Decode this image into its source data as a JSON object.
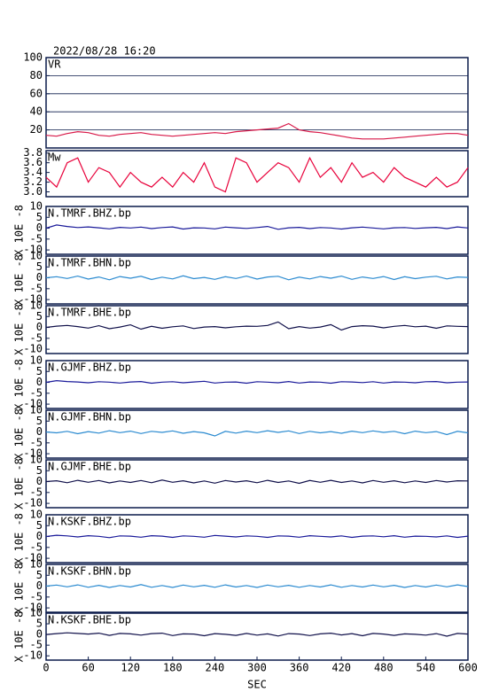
{
  "chart_data": [
    {
      "type": "line",
      "title": "2022/08/28 16:20",
      "label": "VR",
      "color": "#d81848",
      "grid": true,
      "ylim": [
        0,
        100
      ],
      "yticks": [
        20,
        40,
        60,
        80,
        100
      ],
      "xlim": [
        0,
        600
      ],
      "x": [
        0,
        15,
        30,
        45,
        60,
        75,
        90,
        105,
        120,
        135,
        150,
        165,
        180,
        195,
        210,
        225,
        240,
        255,
        270,
        285,
        300,
        315,
        330,
        345,
        360,
        375,
        390,
        405,
        420,
        435,
        450,
        465,
        480,
        495,
        510,
        525,
        540,
        555,
        570,
        585,
        600
      ],
      "values": [
        14,
        13,
        16,
        18,
        17,
        14,
        13,
        15,
        16,
        17,
        15,
        14,
        13,
        14,
        15,
        16,
        17,
        16,
        18,
        19,
        20,
        21,
        22,
        27,
        20,
        18,
        17,
        15,
        13,
        11,
        10,
        10,
        10,
        11,
        12,
        13,
        14,
        15,
        16,
        16,
        14
      ]
    },
    {
      "type": "line",
      "label": "Mw",
      "color": "#e8003a",
      "ylim": [
        2.9,
        3.85
      ],
      "yticks": [
        {
          "value": 3,
          "label": "3.0"
        },
        3.2,
        3.4,
        3.6,
        3.8
      ],
      "xlim": [
        0,
        600
      ],
      "x": [
        0,
        15,
        30,
        45,
        60,
        75,
        90,
        105,
        120,
        135,
        150,
        165,
        180,
        195,
        210,
        225,
        240,
        255,
        270,
        285,
        300,
        315,
        330,
        345,
        360,
        375,
        390,
        405,
        420,
        435,
        450,
        465,
        480,
        495,
        510,
        525,
        540,
        555,
        570,
        585,
        600
      ],
      "values": [
        3.3,
        3.1,
        3.6,
        3.7,
        3.2,
        3.5,
        3.4,
        3.1,
        3.4,
        3.2,
        3.1,
        3.3,
        3.1,
        3.4,
        3.2,
        3.6,
        3.1,
        3.0,
        3.7,
        3.6,
        3.2,
        3.4,
        3.6,
        3.5,
        3.2,
        3.7,
        3.3,
        3.5,
        3.2,
        3.6,
        3.3,
        3.4,
        3.2,
        3.5,
        3.3,
        3.2,
        3.1,
        3.3,
        3.1,
        3.2,
        3.5
      ]
    },
    {
      "type": "line",
      "label": "N.TMRF.BHZ.bp",
      "ylabel": "X 10E -8",
      "color": "#1a1a9a",
      "ylim": [
        -12,
        10
      ],
      "yticks": [
        -10,
        -5,
        0,
        5,
        10
      ],
      "xlim": [
        0,
        600
      ],
      "x": [
        0,
        15,
        30,
        45,
        60,
        75,
        90,
        105,
        120,
        135,
        150,
        165,
        180,
        195,
        210,
        225,
        240,
        255,
        270,
        285,
        300,
        315,
        330,
        345,
        360,
        375,
        390,
        405,
        420,
        435,
        450,
        465,
        480,
        495,
        510,
        525,
        540,
        555,
        570,
        585,
        600
      ],
      "values": [
        0,
        1.5,
        0.8,
        0.3,
        0.6,
        0.2,
        -0.3,
        0.4,
        0.1,
        0.5,
        -0.2,
        0.3,
        0.6,
        -0.4,
        0.2,
        0.1,
        -0.3,
        0.5,
        0.2,
        -0.1,
        0.3,
        0.8,
        -0.5,
        0.2,
        0.4,
        -0.2,
        0.3,
        0.1,
        -0.4,
        0.2,
        0.5,
        0.1,
        -0.3,
        0.2,
        0.3,
        -0.1,
        0.2,
        0.4,
        -0.2,
        0.6,
        0.1
      ]
    },
    {
      "type": "line",
      "label": "N.TMRF.BHN.bp",
      "ylabel": "X 10E -8",
      "color": "#2a8ad0",
      "ylim": [
        -12,
        10
      ],
      "yticks": [
        -10,
        -5,
        0,
        5,
        10
      ],
      "xlim": [
        0,
        600
      ],
      "x": [
        0,
        15,
        30,
        45,
        60,
        75,
        90,
        105,
        120,
        135,
        150,
        165,
        180,
        195,
        210,
        225,
        240,
        255,
        270,
        285,
        300,
        315,
        330,
        345,
        360,
        375,
        390,
        405,
        420,
        435,
        450,
        465,
        480,
        495,
        510,
        525,
        540,
        555,
        570,
        585,
        600
      ],
      "values": [
        0,
        0.5,
        -0.3,
        0.8,
        -0.6,
        0.4,
        -0.9,
        0.6,
        -0.2,
        0.7,
        -0.8,
        0.3,
        -0.5,
        0.9,
        -0.4,
        0.2,
        -0.7,
        0.5,
        -0.3,
        0.8,
        -0.6,
        0.4,
        0.7,
        -0.9,
        0.3,
        -0.5,
        0.6,
        -0.2,
        0.8,
        -0.7,
        0.4,
        -0.3,
        0.6,
        -0.8,
        0.5,
        -0.4,
        0.3,
        0.7,
        -0.5,
        0.4,
        0.2
      ]
    },
    {
      "type": "line",
      "label": "N.TMRF.BHE.bp",
      "ylabel": "X 10E -8",
      "color": "#10104a",
      "ylim": [
        -12,
        10
      ],
      "yticks": [
        -10,
        -5,
        0,
        5,
        10
      ],
      "xlim": [
        0,
        600
      ],
      "x": [
        0,
        15,
        30,
        45,
        60,
        75,
        90,
        105,
        120,
        135,
        150,
        165,
        180,
        195,
        210,
        225,
        240,
        255,
        270,
        285,
        300,
        315,
        330,
        345,
        360,
        375,
        390,
        405,
        420,
        435,
        450,
        465,
        480,
        495,
        510,
        525,
        540,
        555,
        570,
        585,
        600
      ],
      "values": [
        0,
        0.6,
        0.9,
        0.4,
        -0.3,
        0.8,
        -0.6,
        0.2,
        1.2,
        -0.8,
        0.5,
        -0.4,
        0.3,
        0.7,
        -0.5,
        0.2,
        0.4,
        -0.2,
        0.3,
        0.6,
        0.5,
        0.9,
        2.5,
        -0.6,
        0.4,
        -0.3,
        0.2,
        1.3,
        -1.2,
        0.4,
        0.8,
        0.6,
        -0.2,
        0.5,
        0.9,
        0.3,
        0.6,
        -0.4,
        0.7,
        0.5,
        0.4
      ]
    },
    {
      "type": "line",
      "label": "N.GJMF.BHZ.bp",
      "ylabel": "X 10E -8",
      "color": "#1a1a9a",
      "ylim": [
        -12,
        10
      ],
      "yticks": [
        -10,
        -5,
        0,
        5,
        10
      ],
      "xlim": [
        0,
        600
      ],
      "x": [
        0,
        15,
        30,
        45,
        60,
        75,
        90,
        105,
        120,
        135,
        150,
        165,
        180,
        195,
        210,
        225,
        240,
        255,
        270,
        285,
        300,
        315,
        330,
        345,
        360,
        375,
        390,
        405,
        420,
        435,
        450,
        465,
        480,
        495,
        510,
        525,
        540,
        555,
        570,
        585,
        600
      ],
      "values": [
        0,
        0.8,
        0.4,
        0.2,
        -0.2,
        0.3,
        0.1,
        -0.3,
        0.2,
        0.4,
        -0.4,
        0.1,
        0.3,
        -0.2,
        0.2,
        0.5,
        -0.3,
        0.1,
        0.2,
        -0.4,
        0.3,
        0.1,
        -0.2,
        0.4,
        -0.3,
        0.2,
        0.1,
        -0.4,
        0.3,
        0.2,
        -0.1,
        0.3,
        -0.3,
        0.2,
        0.1,
        -0.2,
        0.3,
        0.4,
        -0.2,
        0.1,
        0.2
      ]
    },
    {
      "type": "line",
      "label": "N.GJMF.BHN.bp",
      "ylabel": "X 10E -8",
      "color": "#2a8ad0",
      "ylim": [
        -12,
        10
      ],
      "yticks": [
        -10,
        -5,
        0,
        5,
        10
      ],
      "xlim": [
        0,
        600
      ],
      "x": [
        0,
        15,
        30,
        45,
        60,
        75,
        90,
        105,
        120,
        135,
        150,
        165,
        180,
        195,
        210,
        225,
        240,
        255,
        270,
        285,
        300,
        315,
        330,
        345,
        360,
        375,
        390,
        405,
        420,
        435,
        450,
        465,
        480,
        495,
        510,
        525,
        540,
        555,
        570,
        585,
        600
      ],
      "values": [
        0,
        -0.4,
        0.3,
        -0.8,
        0.2,
        -0.5,
        0.6,
        -0.3,
        0.4,
        -0.7,
        0.3,
        -0.2,
        0.5,
        -0.6,
        0.2,
        -0.4,
        -1.8,
        0.3,
        -0.5,
        0.4,
        -0.3,
        0.6,
        -0.2,
        0.5,
        -0.7,
        0.3,
        -0.4,
        0.2,
        -0.6,
        0.4,
        -0.3,
        0.5,
        -0.2,
        0.3,
        -0.8,
        0.4,
        -0.3,
        0.2,
        -1.2,
        0.3,
        -0.4
      ]
    },
    {
      "type": "line",
      "label": "N.GJMF.BHE.bp",
      "ylabel": "X 10E -8",
      "color": "#10104a",
      "ylim": [
        -12,
        10
      ],
      "yticks": [
        -10,
        -5,
        0,
        5,
        10
      ],
      "xlim": [
        0,
        600
      ],
      "x": [
        0,
        15,
        30,
        45,
        60,
        75,
        90,
        105,
        120,
        135,
        150,
        165,
        180,
        195,
        210,
        225,
        240,
        255,
        270,
        285,
        300,
        315,
        330,
        345,
        360,
        375,
        390,
        405,
        420,
        435,
        450,
        465,
        480,
        495,
        510,
        525,
        540,
        555,
        570,
        585,
        600
      ],
      "values": [
        0,
        0.4,
        -0.5,
        0.6,
        -0.3,
        0.5,
        -0.6,
        0.3,
        -0.4,
        0.5,
        -0.5,
        0.7,
        -0.3,
        0.4,
        -0.6,
        0.3,
        -0.7,
        0.5,
        -0.2,
        0.4,
        -0.5,
        0.6,
        -0.4,
        0.3,
        -0.8,
        0.5,
        -0.3,
        0.6,
        -0.4,
        0.3,
        -0.6,
        0.5,
        -0.3,
        0.4,
        -0.5,
        0.3,
        -0.4,
        0.5,
        -0.2,
        0.4,
        0.3
      ]
    },
    {
      "type": "line",
      "label": "N.KSKF.BHZ.bp",
      "ylabel": "X 10E -8",
      "color": "#1a1a9a",
      "ylim": [
        -12,
        10
      ],
      "yticks": [
        -10,
        -5,
        0,
        5,
        10
      ],
      "xlim": [
        0,
        600
      ],
      "x": [
        0,
        15,
        30,
        45,
        60,
        75,
        90,
        105,
        120,
        135,
        150,
        165,
        180,
        195,
        210,
        225,
        240,
        255,
        270,
        285,
        300,
        315,
        330,
        345,
        360,
        375,
        390,
        405,
        420,
        435,
        450,
        465,
        480,
        495,
        510,
        525,
        540,
        555,
        570,
        585,
        600
      ],
      "values": [
        0,
        0.6,
        0.3,
        -0.2,
        0.4,
        0.1,
        -0.5,
        0.3,
        0.2,
        -0.3,
        0.4,
        0.2,
        -0.4,
        0.3,
        0.1,
        -0.3,
        0.5,
        0.2,
        -0.2,
        0.3,
        0.1,
        -0.4,
        0.3,
        0.2,
        -0.3,
        0.4,
        0.1,
        -0.2,
        0.3,
        -0.4,
        0.2,
        0.3,
        -0.1,
        0.4,
        -0.3,
        0.2,
        0.1,
        -0.2,
        0.3,
        -0.4,
        0.2
      ]
    },
    {
      "type": "line",
      "label": "N.KSKF.BHN.bp",
      "ylabel": "X 10E -8",
      "color": "#2a8ad0",
      "ylim": [
        -12,
        10
      ],
      "yticks": [
        -10,
        -5,
        0,
        5,
        10
      ],
      "xlim": [
        0,
        600
      ],
      "x": [
        0,
        15,
        30,
        45,
        60,
        75,
        90,
        105,
        120,
        135,
        150,
        165,
        180,
        195,
        210,
        225,
        240,
        255,
        270,
        285,
        300,
        315,
        330,
        345,
        360,
        375,
        390,
        405,
        420,
        435,
        450,
        465,
        480,
        495,
        510,
        525,
        540,
        555,
        570,
        585,
        600
      ],
      "values": [
        0,
        0.5,
        -0.3,
        0.6,
        -0.5,
        0.4,
        -0.6,
        0.3,
        -0.4,
        0.7,
        -0.5,
        0.3,
        -0.6,
        0.5,
        -0.3,
        0.4,
        -0.5,
        0.6,
        -0.4,
        0.3,
        -0.6,
        0.5,
        -0.3,
        0.4,
        -0.5,
        0.3,
        -0.4,
        0.6,
        -0.5,
        0.3,
        -0.4,
        0.5,
        -0.3,
        0.4,
        -0.6,
        0.3,
        -0.4,
        0.5,
        -0.3,
        0.6,
        -0.2
      ]
    },
    {
      "type": "line",
      "label": "N.KSKF.BHE.bp",
      "ylabel": "X 10E -8",
      "color": "#10104a",
      "ylim": [
        -12,
        10
      ],
      "yticks": [
        -10,
        -5,
        0,
        5,
        10
      ],
      "xlim": [
        0,
        600
      ],
      "xticks": [
        0,
        60,
        120,
        180,
        240,
        300,
        360,
        420,
        480,
        540,
        600
      ],
      "xlabel": "SEC",
      "x": [
        0,
        15,
        30,
        45,
        60,
        75,
        90,
        105,
        120,
        135,
        150,
        165,
        180,
        195,
        210,
        225,
        240,
        255,
        270,
        285,
        300,
        315,
        330,
        345,
        360,
        375,
        390,
        405,
        420,
        435,
        450,
        465,
        480,
        495,
        510,
        525,
        540,
        555,
        570,
        585,
        600
      ],
      "values": [
        0,
        0.4,
        0.8,
        0.5,
        0.2,
        0.6,
        -0.4,
        0.5,
        0.3,
        -0.3,
        0.4,
        0.6,
        -0.5,
        0.3,
        0.2,
        -0.6,
        0.4,
        0.1,
        -0.4,
        0.5,
        -0.3,
        0.3,
        -0.7,
        0.4,
        0.2,
        -0.5,
        0.3,
        0.6,
        -0.2,
        0.4,
        -0.6,
        0.5,
        0.2,
        -0.4,
        0.3,
        0.1,
        -0.3,
        0.4,
        -0.8,
        0.5,
        0.2
      ]
    }
  ]
}
